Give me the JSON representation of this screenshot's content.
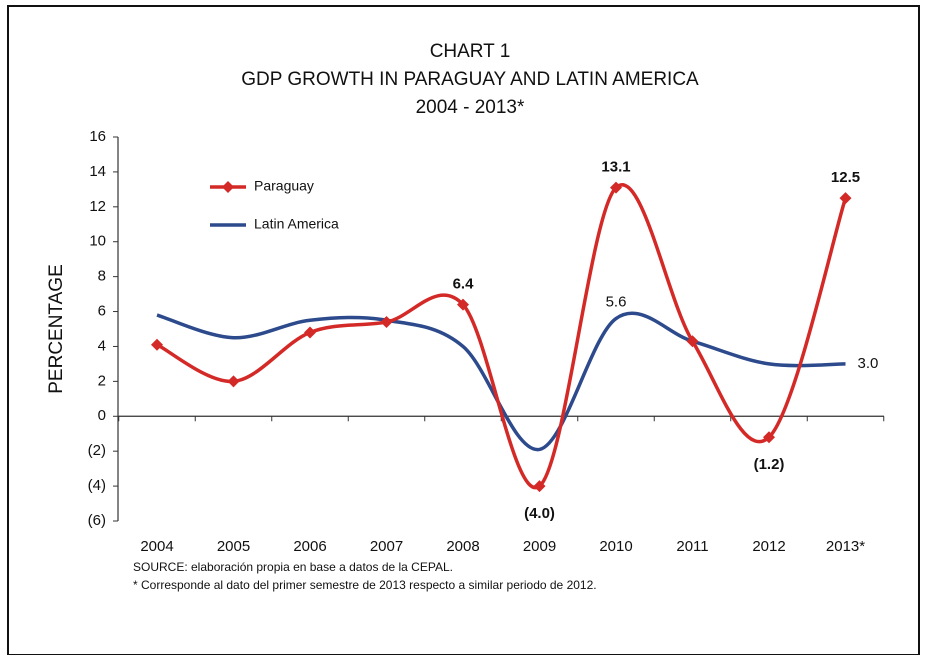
{
  "chart_data": {
    "type": "line",
    "title": "CHART 1",
    "subtitle": "GDP GROWTH IN PARAGUAY AND LATIN AMERICA",
    "period": "2004 - 2013*",
    "y_label": "PERCENTAGE",
    "categories": [
      "2004",
      "2005",
      "2006",
      "2007",
      "2008",
      "2009",
      "2010",
      "2011",
      "2012",
      "2013*"
    ],
    "series": [
      {
        "name": "Paraguay",
        "color": "#d42a27",
        "marker": "diamond",
        "values": [
          4.1,
          2.0,
          4.8,
          5.4,
          6.4,
          -4.0,
          13.1,
          4.3,
          -1.2,
          12.5
        ],
        "value_labels": [
          null,
          null,
          null,
          null,
          "6.4",
          "(4.0)",
          "13.1",
          null,
          "(1.2)",
          "12.5"
        ]
      },
      {
        "name": "Latin America",
        "color": "#2c4a8c",
        "values": [
          5.8,
          4.5,
          5.5,
          5.5,
          4.0,
          -1.9,
          5.6,
          4.3,
          3.0,
          3.0
        ],
        "value_labels": [
          null,
          null,
          null,
          null,
          null,
          null,
          "5.6",
          null,
          null,
          "3.0"
        ]
      }
    ],
    "ylim": [
      -6,
      16
    ],
    "yticks": [
      {
        "value": -6,
        "label": "(6)"
      },
      {
        "value": -4,
        "label": "(4)"
      },
      {
        "value": -2,
        "label": "(2)"
      },
      0,
      2,
      4,
      6,
      8,
      10,
      12,
      14,
      16
    ],
    "source": "SOURCE: elaboración propia en base a datos de la CEPAL.",
    "note": "* Corresponde al dato del primer semestre de 2013 respecto a similar periodo de 2012."
  }
}
